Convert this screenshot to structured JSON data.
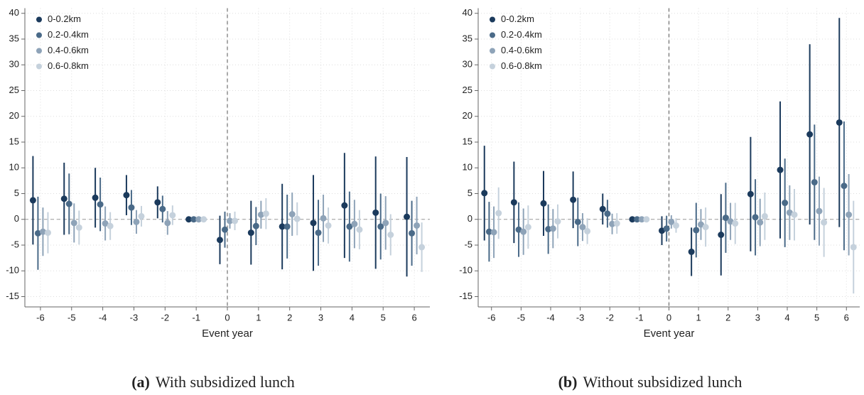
{
  "chart_data": [
    {
      "type": "errorbar",
      "caption_label": "(a)",
      "caption": "With subsidized lunch",
      "x_label": "Event year",
      "x": [
        -6,
        -5,
        -4,
        -3,
        -2,
        -1,
        0,
        1,
        2,
        3,
        4,
        5,
        6
      ],
      "xlim": [
        -6.5,
        6.5
      ],
      "xticks": [
        -6,
        -5,
        -4,
        -3,
        -2,
        -1,
        0,
        1,
        2,
        3,
        4,
        5,
        6
      ],
      "ylim": [
        -17,
        41
      ],
      "yticks": [
        -15,
        -10,
        -5,
        0,
        5,
        10,
        15,
        20,
        25,
        30,
        35,
        40
      ],
      "grid": true,
      "legend": "upper left",
      "series": [
        {
          "name": "0-0.2km",
          "color": "#1b3a5c",
          "values": [
            3.7,
            4.0,
            4.2,
            4.7,
            3.3,
            0,
            -4.0,
            -2.6,
            -1.4,
            -0.7,
            2.7,
            1.3,
            0.5
          ],
          "errors": [
            8.6,
            7,
            5.8,
            3.9,
            3.1,
            0,
            4.7,
            6.2,
            8.3,
            9.3,
            10.2,
            10.9,
            11.6
          ]
        },
        {
          "name": "0.2-0.4km",
          "color": "#4a6a88",
          "values": [
            -2.7,
            3.0,
            2.9,
            2.3,
            2.0,
            0,
            -2.0,
            -1.3,
            -1.4,
            -2.6,
            -1.4,
            -1.4,
            -2.7
          ],
          "errors": [
            7.1,
            5.9,
            5.2,
            3.4,
            2.6,
            0,
            3.5,
            3.7,
            6.2,
            6.4,
            6.8,
            6.4,
            6.3
          ]
        },
        {
          "name": "0.4-0.6km",
          "color": "#8ea3b8",
          "values": [
            -2.4,
            -0.7,
            -0.8,
            -0.5,
            -0.7,
            0,
            -0.3,
            0.9,
            1.0,
            0.2,
            -0.9,
            -0.7,
            -1.2
          ],
          "errors": [
            4.7,
            3.8,
            3.3,
            2.3,
            2.3,
            0,
            1.5,
            2.7,
            4.2,
            4.6,
            4.7,
            5.2,
            5.6
          ]
        },
        {
          "name": "0.6-0.8km",
          "color": "#c5d1dc",
          "values": [
            -2.6,
            -1.6,
            -1.3,
            0.6,
            0.8,
            0,
            -0.3,
            1.1,
            0.1,
            -1.2,
            -2.0,
            -3.0,
            -5.4
          ],
          "errors": [
            4,
            3.3,
            2.7,
            2,
            1.9,
            0,
            1.8,
            3,
            3.2,
            3.5,
            3.8,
            4,
            4.8
          ]
        }
      ]
    },
    {
      "type": "errorbar",
      "caption_label": "(b)",
      "caption": "Without subsidized lunch",
      "x_label": "Event year",
      "x": [
        -6,
        -5,
        -4,
        -3,
        -2,
        -1,
        0,
        1,
        2,
        3,
        4,
        5,
        6
      ],
      "xlim": [
        -6.45,
        6.45
      ],
      "xticks": [
        -6,
        -5,
        -4,
        -3,
        -2,
        -1,
        0,
        1,
        2,
        3,
        4,
        5,
        6
      ],
      "ylim": [
        -17,
        41
      ],
      "yticks": [
        -15,
        -10,
        -5,
        0,
        5,
        10,
        15,
        20,
        25,
        30,
        35,
        40
      ],
      "grid": true,
      "legend": "upper left",
      "series": [
        {
          "name": "0-0.2km",
          "color": "#1b3a5c",
          "values": [
            5.1,
            3.3,
            3.1,
            3.8,
            2.0,
            0,
            -2.2,
            -6.3,
            -3.0,
            4.9,
            9.6,
            16.5,
            18.8
          ],
          "errors": [
            9.2,
            7.9,
            6.3,
            5.5,
            3,
            0,
            2.8,
            4.7,
            7.9,
            11.1,
            13.3,
            17.5,
            20.3
          ]
        },
        {
          "name": "0.2-0.4km",
          "color": "#4a6a88",
          "values": [
            -2.4,
            -2.0,
            -1.9,
            -0.5,
            1.1,
            0,
            -1.8,
            -2.1,
            0.3,
            0.4,
            3.2,
            7.2,
            6.5
          ],
          "errors": [
            5.8,
            5.3,
            4.8,
            4.7,
            2.7,
            0,
            2.5,
            5.3,
            6.8,
            7.4,
            8.6,
            11.2,
            12.5
          ]
        },
        {
          "name": "0.4-0.6km",
          "color": "#8ea3b8",
          "values": [
            -2.5,
            -2.4,
            -1.8,
            -1.5,
            -0.9,
            0,
            -0.5,
            -1.0,
            -0.4,
            -0.6,
            1.3,
            1.6,
            0.9
          ],
          "errors": [
            5,
            4.5,
            3.8,
            2.7,
            2,
            0,
            1.3,
            3,
            3.6,
            4.6,
            5.3,
            6.7,
            7.9
          ]
        },
        {
          "name": "0.6-0.8km",
          "color": "#c5d1dc",
          "values": [
            1.2,
            -1.5,
            -0.4,
            -2.3,
            -0.8,
            0,
            -1.2,
            -1.5,
            -0.8,
            0.6,
            0.9,
            -0.6,
            -5.4
          ],
          "errors": [
            5,
            4.2,
            3.3,
            2.5,
            2,
            0,
            1.4,
            3.8,
            4,
            4.6,
            5,
            6.7,
            9
          ]
        }
      ]
    }
  ]
}
